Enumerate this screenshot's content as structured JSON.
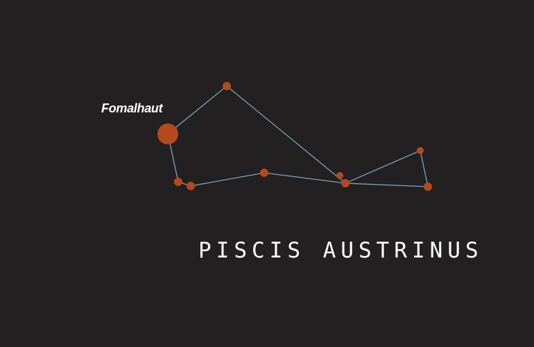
{
  "constellation": {
    "name": "PISCIS AUSTRINUS",
    "labeled_star": "Fomalhaut"
  },
  "colors": {
    "background": "#232021",
    "star": "#b5491c",
    "line": "#7da4c0",
    "text": "#ffffff"
  },
  "stars": [
    {
      "id": "fomalhaut",
      "magnitude_class": "bright"
    },
    {
      "id": "star-top"
    },
    {
      "id": "star-lower-left-a"
    },
    {
      "id": "star-lower-left-b"
    },
    {
      "id": "star-middle"
    },
    {
      "id": "star-center-small"
    },
    {
      "id": "star-center"
    },
    {
      "id": "star-right-top"
    },
    {
      "id": "star-right-bottom"
    }
  ]
}
